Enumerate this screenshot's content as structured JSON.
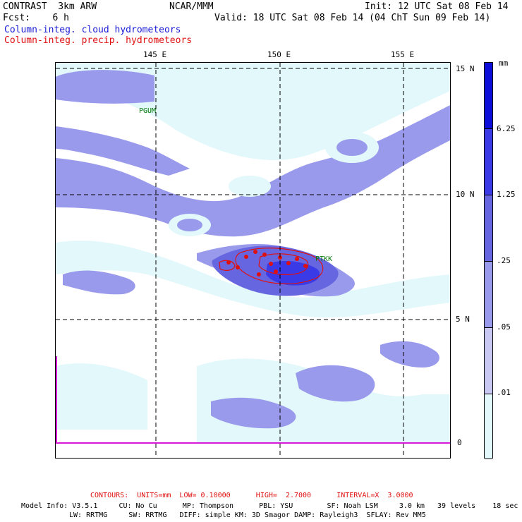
{
  "header": {
    "model": "CONTRAST  3km ARW",
    "center": "NCAR/MMM",
    "init": "Init: 12 UTC Sat 08 Feb 14",
    "fcst": "Fcst:    6 h",
    "valid": "Valid: 18 UTC Sat 08 Feb 14 (04 ChT Sun 09 Feb 14)",
    "field1": "Column-integ. cloud hydrometeors",
    "field2": "Column-integ. precip. hydrometeors",
    "field1_color": "#1a1ad6",
    "field2_color": "#e01010"
  },
  "map": {
    "lon_labels": [
      "145 E",
      "150 E",
      "155 E"
    ],
    "lat_labels": [
      "15 N",
      "10 N",
      "5 N",
      "0"
    ],
    "stations": [
      "PGUM",
      "PTKK"
    ]
  },
  "colorbar": {
    "unit": "mm",
    "labels": [
      "6.25",
      "1.25",
      ".25",
      ".05",
      ".01"
    ],
    "colors": [
      "#0d0dd9",
      "#3a3ae6",
      "#6666e0",
      "#9a9aec",
      "#c8c8f2",
      "#e2f8fb",
      "#ffffff"
    ]
  },
  "footer": {
    "contours": "CONTOURS:  UNITS=mm  LOW= 0.10000      HIGH=  2.7000      INTERVAL=X  3.0000",
    "model_info_1": "Model Info: V3.5.1     CU: No Cu      MP: Thompson      PBL: YSU        SF: Noah LSM     3.0 km   39 levels    18 sec",
    "model_info_2": "LW: RRTMG     SW: RRTMG   DIFF: simple KM: 3D Smagor DAMP: Rayleigh3  SFLAY: Rev MM5"
  }
}
